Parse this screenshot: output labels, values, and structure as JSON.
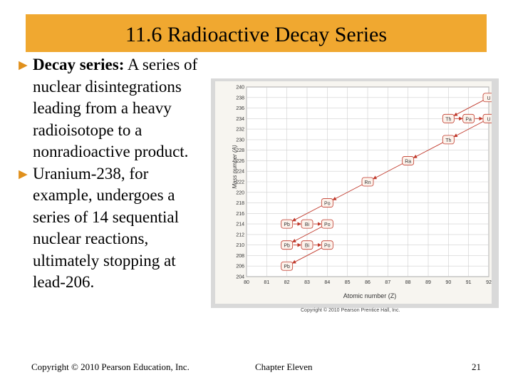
{
  "title": "11.6 Radioactive Decay Series",
  "bullets": [
    {
      "term": "Decay series:",
      "text": " A series of nuclear disintegrations leading from a heavy radioisotope to a nonradioactive product."
    },
    {
      "term": "",
      "text": "Uranium-238, for example, undergoes a series of 14 sequential nuclear reactions, ultimately stopping at lead-206."
    }
  ],
  "bullet_glyph": "►",
  "figure": {
    "credit": "Copyright © 2010 Pearson Prentice Hall, Inc.",
    "xlabel": "Atomic number (Z)",
    "ylabel": "Mass number (A)"
  },
  "chart_data": {
    "type": "scatter",
    "xlabel": "Atomic number (Z)",
    "ylabel": "Mass number (A)",
    "x_ticks": [
      80,
      81,
      82,
      83,
      84,
      85,
      86,
      87,
      88,
      89,
      90,
      91,
      92
    ],
    "y_ticks": [
      204,
      206,
      208,
      210,
      212,
      214,
      216,
      218,
      220,
      222,
      224,
      226,
      228,
      230,
      232,
      234,
      236,
      238,
      240
    ],
    "xlim": [
      80,
      92
    ],
    "ylim": [
      204,
      240
    ],
    "grid": true,
    "nuclides": [
      {
        "symbol": "U",
        "z": 92,
        "a": 238
      },
      {
        "symbol": "Th",
        "z": 90,
        "a": 234
      },
      {
        "symbol": "Pa",
        "z": 91,
        "a": 234
      },
      {
        "symbol": "U",
        "z": 92,
        "a": 234
      },
      {
        "symbol": "Th",
        "z": 90,
        "a": 230
      },
      {
        "symbol": "Ra",
        "z": 88,
        "a": 226
      },
      {
        "symbol": "Rn",
        "z": 86,
        "a": 222
      },
      {
        "symbol": "Po",
        "z": 84,
        "a": 218
      },
      {
        "symbol": "Pb",
        "z": 82,
        "a": 214
      },
      {
        "symbol": "Bi",
        "z": 83,
        "a": 214
      },
      {
        "symbol": "Po",
        "z": 84,
        "a": 214
      },
      {
        "symbol": "Pb",
        "z": 82,
        "a": 210
      },
      {
        "symbol": "Bi",
        "z": 83,
        "a": 210
      },
      {
        "symbol": "Po",
        "z": 84,
        "a": 210
      },
      {
        "symbol": "Pb",
        "z": 82,
        "a": 206
      }
    ],
    "alpha_decays": [
      [
        [
          92,
          238
        ],
        [
          90,
          234
        ]
      ],
      [
        [
          92,
          234
        ],
        [
          90,
          230
        ]
      ],
      [
        [
          90,
          230
        ],
        [
          88,
          226
        ]
      ],
      [
        [
          88,
          226
        ],
        [
          86,
          222
        ]
      ],
      [
        [
          86,
          222
        ],
        [
          84,
          218
        ]
      ],
      [
        [
          84,
          218
        ],
        [
          82,
          214
        ]
      ],
      [
        [
          84,
          214
        ],
        [
          82,
          210
        ]
      ],
      [
        [
          84,
          210
        ],
        [
          82,
          206
        ]
      ]
    ],
    "beta_decays": [
      [
        [
          90,
          234
        ],
        [
          91,
          234
        ]
      ],
      [
        [
          91,
          234
        ],
        [
          92,
          234
        ]
      ],
      [
        [
          82,
          214
        ],
        [
          83,
          214
        ]
      ],
      [
        [
          83,
          214
        ],
        [
          84,
          214
        ]
      ],
      [
        [
          82,
          210
        ],
        [
          83,
          210
        ]
      ],
      [
        [
          83,
          210
        ],
        [
          84,
          210
        ]
      ]
    ],
    "colors": {
      "nuclide_stroke": "#c0392b",
      "arrow": "#c0392b",
      "grid": "#cfcfcf",
      "axis": "#666666"
    }
  },
  "footer": {
    "copyright": "Copyright © 2010 Pearson Education, Inc.",
    "chapter": "Chapter Eleven",
    "page": "21"
  },
  "colors": {
    "title_bar": "#f0a830",
    "bullet_arrow": "#e0901c"
  }
}
